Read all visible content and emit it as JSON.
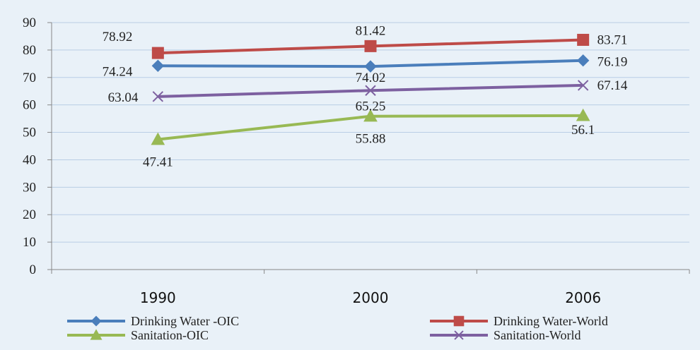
{
  "chart_data": {
    "type": "line",
    "title": "",
    "xlabel": "",
    "ylabel": "",
    "categories": [
      "1990",
      "2000",
      "2006"
    ],
    "ylim": [
      0,
      90
    ],
    "yticks": [
      0,
      10,
      20,
      30,
      40,
      50,
      60,
      70,
      80,
      90
    ],
    "grid": true,
    "legend_position": "bottom",
    "series": [
      {
        "name": "Drinking Water -OIC",
        "values": [
          74.24,
          74.02,
          76.19
        ],
        "labels": [
          "74.24",
          "74.02",
          "76.19"
        ],
        "color": "#4a7ebb",
        "marker": "diamond"
      },
      {
        "name": "Drinking Water-World",
        "values": [
          78.92,
          81.42,
          83.71
        ],
        "labels": [
          "78.92",
          "81.42",
          "83.71"
        ],
        "color": "#be4b48",
        "marker": "square"
      },
      {
        "name": "Sanitation-OIC",
        "values": [
          47.41,
          55.88,
          56.1
        ],
        "labels": [
          "47.41",
          "55.88",
          "56.1"
        ],
        "color": "#98b954",
        "marker": "triangle"
      },
      {
        "name": "Sanitation-World",
        "values": [
          63.04,
          65.25,
          67.14
        ],
        "labels": [
          "63.04",
          "65.25",
          "67.14"
        ],
        "color": "#7d60a0",
        "marker": "x"
      }
    ]
  }
}
